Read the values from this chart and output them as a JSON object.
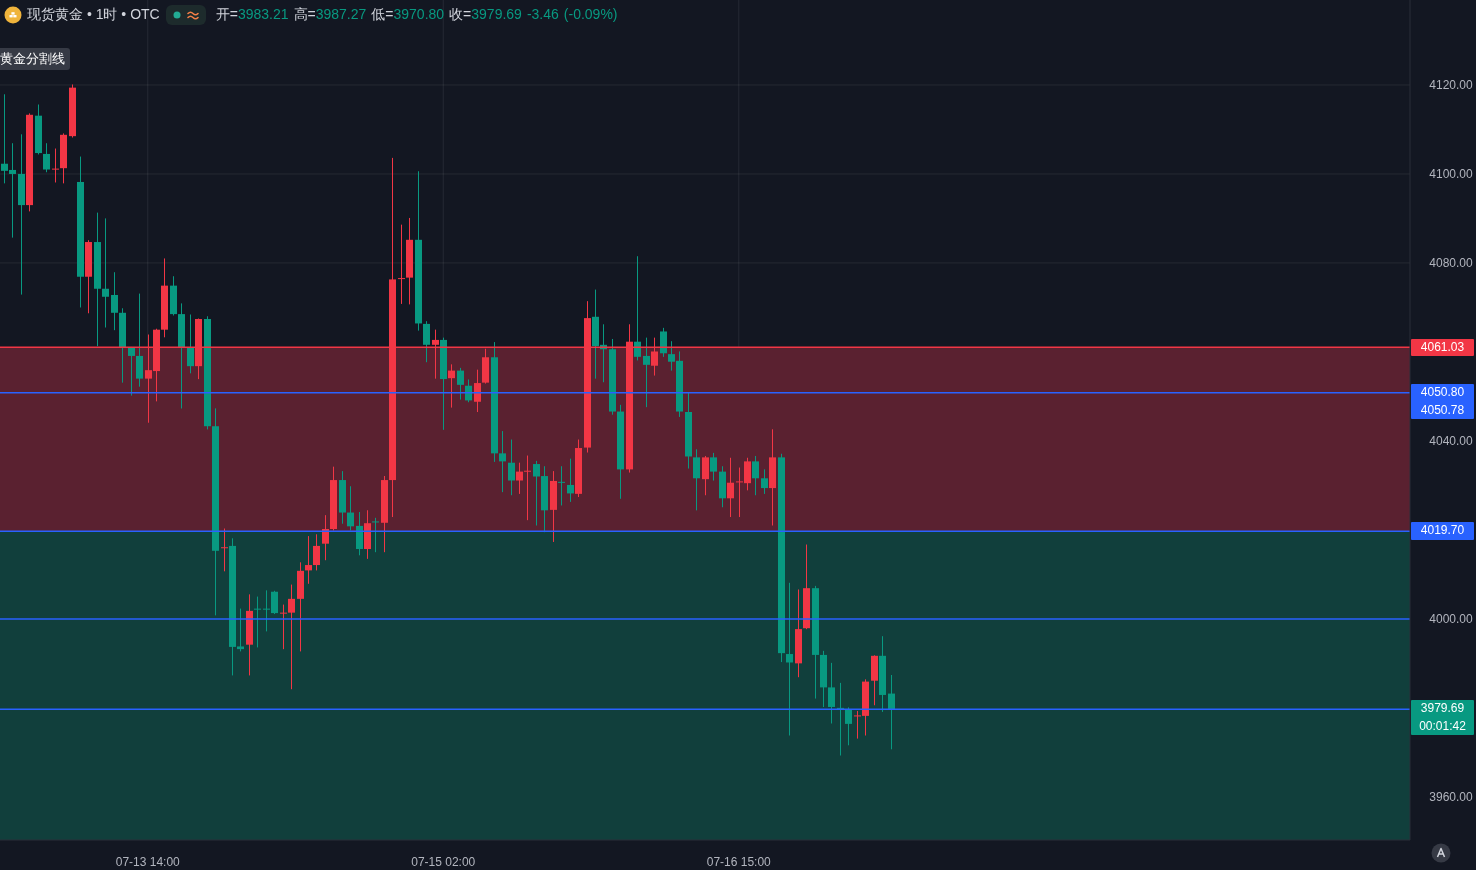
{
  "chart_data": {
    "type": "candlestick",
    "title": "现货黄金 • 1时 • OTC",
    "subtitle": "开=3983.21 高=3987.27 低=3970.80 收=3979.69 -3.46 (-0.09%)",
    "categories": [
      null,
      null,
      null,
      null,
      null,
      null,
      null,
      null,
      null,
      null,
      null,
      null,
      null,
      null,
      null,
      null,
      null,
      "07-13 14:00",
      null,
      null,
      null,
      null,
      null,
      null,
      null,
      null,
      null,
      null,
      null,
      null,
      null,
      null,
      null,
      null,
      null,
      null,
      null,
      null,
      null,
      null,
      null,
      null,
      null,
      null,
      null,
      null,
      null,
      null,
      null,
      null,
      null,
      null,
      "07-15 02:00",
      null,
      null,
      null,
      null,
      null,
      null,
      null,
      null,
      null,
      null,
      null,
      null,
      null,
      null,
      null,
      null,
      null,
      null,
      null,
      null,
      null,
      null,
      null,
      null,
      null,
      null,
      null,
      null,
      null,
      null,
      null,
      null,
      null,
      null,
      "07-16 15:00",
      null,
      null,
      null,
      null,
      null,
      null,
      null,
      null,
      null,
      null,
      null,
      null,
      null,
      null,
      null,
      null,
      null,
      null,
      null,
      null,
      null,
      null,
      null,
      null,
      null,
      null,
      null,
      null,
      null,
      null,
      null,
      null,
      null,
      null,
      null,
      null,
      null,
      null,
      null,
      null,
      null,
      null,
      null,
      null,
      null,
      null,
      null,
      null,
      null,
      null,
      null,
      null,
      null,
      null,
      null,
      null,
      null,
      null,
      null,
      null,
      null,
      null,
      null,
      null,
      null,
      null,
      null,
      null,
      null,
      null,
      null,
      null,
      null,
      null,
      null,
      null,
      null,
      null,
      null
    ],
    "ohlc": [
      [
        4102.3,
        4117.8,
        4098.0,
        4100.7
      ],
      [
        4100.9,
        4106.8,
        4085.8,
        4100.0
      ],
      [
        4100.0,
        4108.8,
        4073.0,
        4093.0
      ],
      [
        4093.0,
        4113.5,
        4091.7,
        4113.3
      ],
      [
        4113.1,
        4115.5,
        4104.5,
        4104.7
      ],
      [
        4104.5,
        4106.8,
        4100.5,
        4101.0
      ],
      [
        4101.0,
        4105.6,
        4098.2,
        4101.2
      ],
      [
        4101.3,
        4109.0,
        4098.0,
        4108.8
      ],
      [
        4108.5,
        4120.0,
        4108.3,
        4119.4
      ],
      [
        4098.2,
        4103.8,
        4070.1,
        4076.9
      ],
      [
        4076.9,
        4085.0,
        4068.8,
        4084.7
      ],
      [
        4084.7,
        4091.2,
        4061.4,
        4074.2
      ],
      [
        4074.2,
        4089.9,
        4065.6,
        4072.4
      ],
      [
        4072.8,
        4077.8,
        4065.0,
        4068.8
      ],
      [
        4068.8,
        4069.7,
        4053.2,
        4060.9
      ],
      [
        4060.9,
        4061.0,
        4050.3,
        4059.1
      ],
      [
        4059.1,
        4073.0,
        4052.3,
        4054.0
      ],
      [
        4054.0,
        4063.8,
        4044.2,
        4055.9
      ],
      [
        4055.7,
        4065.1,
        4049.0,
        4065.0
      ],
      [
        4065.0,
        4080.9,
        4063.4,
        4074.9
      ],
      [
        4074.9,
        4076.9,
        4068.3,
        4068.5
      ],
      [
        4068.5,
        4070.8,
        4047.4,
        4060.9
      ],
      [
        4060.9,
        4068.3,
        4055.3,
        4056.8
      ],
      [
        4056.8,
        4067.4,
        4054.0,
        4067.4
      ],
      [
        4067.4,
        4067.9,
        4042.7,
        4043.3
      ],
      [
        4043.3,
        4047.2,
        4000.9,
        4015.3
      ],
      [
        4016.0,
        4020.2,
        4010.8,
        4016.1
      ],
      [
        4016.4,
        4018.0,
        3987.4,
        3993.7
      ],
      [
        3993.8,
        4002.2,
        3992.8,
        3993.2
      ],
      [
        3994.2,
        4005.4,
        3987.4,
        4001.8
      ],
      [
        4002.3,
        4004.9,
        3993.7,
        4002.1
      ],
      [
        4002.3,
        4006.3,
        3997.3,
        4002.1
      ],
      [
        4006.1,
        4006.2,
        4001.2,
        4001.3
      ],
      [
        4001.3,
        4003.1,
        3993.3,
        4001.4
      ],
      [
        4001.4,
        4007.6,
        3984.3,
        4004.5
      ],
      [
        4004.5,
        4012.6,
        3992.8,
        4010.8
      ],
      [
        4010.9,
        4018.5,
        4008.0,
        4012.1
      ],
      [
        4012.1,
        4018.9,
        4011.0,
        4016.4
      ],
      [
        4016.9,
        4023.2,
        4013.3,
        4020.2
      ],
      [
        4020.2,
        4034.1,
        4020.0,
        4031.2
      ],
      [
        4031.2,
        4033.1,
        4021.5,
        4023.9
      ],
      [
        4023.9,
        4029.7,
        4020.0,
        4020.8
      ],
      [
        4020.9,
        4023.9,
        4014.4,
        4015.7
      ],
      [
        4015.7,
        4024.3,
        4013.6,
        4021.5
      ],
      [
        4021.9,
        4022.6,
        4015.1,
        4021.8
      ],
      [
        4021.6,
        4032.0,
        4015.1,
        4031.2
      ],
      [
        4031.2,
        4103.5,
        4023.0,
        4076.3
      ],
      [
        4076.5,
        4088.5,
        4070.9,
        4076.6
      ],
      [
        4076.7,
        4090.0,
        4070.8,
        4085.2
      ],
      [
        4085.2,
        4100.5,
        4064.9,
        4066.4
      ],
      [
        4066.3,
        4066.8,
        4057.8,
        4061.6
      ],
      [
        4061.6,
        4064.9,
        4054.1,
        4062.7
      ],
      [
        4062.7,
        4063.1,
        4042.6,
        4053.9
      ],
      [
        4054.1,
        4057.1,
        4047.6,
        4055.8
      ],
      [
        4055.8,
        4056.3,
        4049.4,
        4052.6
      ],
      [
        4052.4,
        4053.7,
        4048.8,
        4049.1
      ],
      [
        4048.8,
        4055.9,
        4046.6,
        4053.0
      ],
      [
        4053.1,
        4060.6,
        4053.0,
        4058.8
      ],
      [
        4058.8,
        4062.1,
        4035.4,
        4037.2
      ],
      [
        4037.2,
        4042.1,
        4028.6,
        4035.4
      ],
      [
        4035.1,
        4040.2,
        4027.9,
        4031.1
      ],
      [
        4031.1,
        4035.0,
        4028.2,
        4033.1
      ],
      [
        4033.2,
        4036.6,
        4022.3,
        4033.3
      ],
      [
        4034.8,
        4035.4,
        4021.1,
        4032.0
      ],
      [
        4032.1,
        4034.2,
        4019.6,
        4024.4
      ],
      [
        4024.5,
        4033.1,
        4017.4,
        4031.0
      ],
      [
        4030.8,
        4034.2,
        4025.6,
        4030.6
      ],
      [
        4030.1,
        4035.9,
        4026.4,
        4028.2
      ],
      [
        4028.1,
        4040.2,
        4027.5,
        4038.4
      ],
      [
        4038.5,
        4071.3,
        4037.5,
        4067.6
      ],
      [
        4067.9,
        4073.9,
        4054.1,
        4061.3
      ],
      [
        4061.6,
        4066.1,
        4053.3,
        4060.6
      ],
      [
        4060.6,
        4062.8,
        4046.0,
        4046.6
      ],
      [
        4046.6,
        4048.0,
        4027.1,
        4033.6
      ],
      [
        4033.6,
        4066.1,
        4033.0,
        4062.3
      ],
      [
        4062.3,
        4081.4,
        4058.2,
        4058.9
      ],
      [
        4059.1,
        4063.1,
        4047.7,
        4057.1
      ],
      [
        4056.9,
        4063.1,
        4054.8,
        4060.1
      ],
      [
        4064.6,
        4065.3,
        4059.0,
        4059.7
      ],
      [
        4059.5,
        4062.3,
        4055.9,
        4057.8
      ],
      [
        4058.0,
        4060.0,
        4045.5,
        4046.6
      ],
      [
        4046.5,
        4050.7,
        4033.9,
        4036.5
      ],
      [
        4036.3,
        4038.0,
        4024.5,
        4031.6
      ],
      [
        4031.4,
        4036.5,
        4027.9,
        4036.3
      ],
      [
        4036.3,
        4037.2,
        4031.2,
        4033.1
      ],
      [
        4033.1,
        4034.2,
        4025.2,
        4027.1
      ],
      [
        4027.1,
        4036.1,
        4023.0,
        4030.6
      ],
      [
        4030.7,
        4033.9,
        4023.0,
        4030.9
      ],
      [
        4030.5,
        4036.1,
        4029.0,
        4035.4
      ],
      [
        4035.4,
        4036.5,
        4027.9,
        4031.6
      ],
      [
        4031.6,
        4033.5,
        4028.2,
        4029.4
      ],
      [
        4029.4,
        4042.5,
        4021.1,
        4036.3
      ],
      [
        4036.3,
        4037.0,
        3990.4,
        3992.3
      ],
      [
        3992.1,
        4008.0,
        3973.9,
        3990.2
      ],
      [
        3990.0,
        4006.5,
        3987.0,
        3997.7
      ],
      [
        3997.9,
        4016.6,
        3997.8,
        4006.9
      ],
      [
        4006.9,
        4007.3,
        3982.2,
        3991.9
      ],
      [
        3991.9,
        3992.7,
        3980.3,
        3984.6
      ],
      [
        3984.6,
        3990.0,
        3976.6,
        3980.2
      ],
      [
        3980.0,
        3985.5,
        3969.4,
        3979.8
      ],
      [
        3979.6,
        3980.0,
        3971.7,
        3976.4
      ],
      [
        3978.2,
        3979.2,
        3973.2,
        3978.3
      ],
      [
        3978.2,
        3986.3,
        3973.9,
        3985.9
      ],
      [
        3986.1,
        3991.7,
        3980.7,
        3991.7
      ],
      [
        3991.7,
        3996.0,
        3979.2,
        3982.9
      ],
      [
        3983.21,
        3987.27,
        3970.8,
        3979.69
      ],
      null,
      null,
      null,
      null,
      null,
      null,
      null,
      null,
      null,
      null,
      null,
      null,
      null,
      null,
      null,
      null,
      null,
      null,
      null,
      null,
      null,
      null,
      null,
      null,
      null,
      null,
      null,
      null,
      null,
      null,
      null,
      null,
      null,
      null,
      null,
      null,
      null,
      null,
      null,
      null,
      null,
      null,
      null,
      null,
      null,
      null,
      null,
      null,
      null,
      null,
      null,
      null,
      null,
      null,
      null,
      null,
      null,
      null,
      null,
      null,
      null
    ],
    "colors": [
      "#089981",
      "#089981",
      "#089981",
      "#f23645",
      "#089981",
      "#089981",
      "#f23645",
      "#f23645",
      "#f23645",
      "#089981",
      "#f23645",
      "#089981",
      "#089981",
      "#089981",
      "#089981",
      "#089981",
      "#089981",
      "#f23645",
      "#f23645",
      "#f23645",
      "#089981",
      "#089981",
      "#089981",
      "#f23645",
      "#089981",
      "#089981",
      "#f23645",
      "#089981",
      "#089981",
      "#f23645",
      "#089981",
      "#089981",
      "#089981",
      "#f23645",
      "#f23645",
      "#f23645",
      "#f23645",
      "#f23645",
      "#f23645",
      "#f23645",
      "#089981",
      "#089981",
      "#089981",
      "#f23645",
      "#089981",
      "#f23645",
      "#f23645",
      "#f23645",
      "#f23645",
      "#089981",
      "#089981",
      "#f23645",
      "#089981",
      "#f23645",
      "#089981",
      "#089981",
      "#f23645",
      "#f23645",
      "#089981",
      "#089981",
      "#089981",
      "#f23645",
      "#f23645",
      "#089981",
      "#089981",
      "#f23645",
      "#089981",
      "#089981",
      "#f23645",
      "#f23645",
      "#089981",
      "#089981",
      "#089981",
      "#089981",
      "#f23645",
      "#089981",
      "#089981",
      "#f23645",
      "#089981",
      "#089981",
      "#089981",
      "#089981",
      "#089981",
      "#f23645",
      "#089981",
      "#089981",
      "#f23645",
      "#f23645",
      "#f23645",
      "#089981",
      "#089981",
      "#f23645",
      "#089981",
      "#089981",
      "#f23645",
      "#f23645",
      "#089981",
      "#089981",
      "#089981",
      "#089981",
      "#089981",
      "#f23645",
      "#f23645",
      "#f23645",
      "#089981",
      "#089981",
      null,
      null,
      null,
      null,
      null,
      null,
      null,
      null,
      null,
      null,
      null,
      null,
      null,
      null,
      null,
      null,
      null,
      null,
      null,
      null,
      null,
      null,
      null,
      null,
      null,
      null,
      null,
      null,
      null,
      null,
      null,
      null,
      null,
      null,
      null,
      null,
      null,
      null,
      null,
      null,
      null,
      null,
      null,
      null,
      null,
      null,
      null,
      null,
      null,
      null,
      null,
      null,
      null,
      null,
      null,
      null,
      null,
      null,
      null,
      null,
      null
    ],
    "ylim": [
      3950.3,
      4139.1
    ],
    "yticks": [
      {
        "value": 3960,
        "label": "3960.00"
      },
      {
        "value": 4000,
        "label": "4000.00"
      },
      {
        "value": 4040,
        "label": "4040.00"
      },
      {
        "value": 4080,
        "label": "4080.00"
      },
      {
        "value": 4100,
        "label": "4100.00"
      },
      {
        "value": 4120,
        "label": "4120.00"
      }
    ],
    "grid": true,
    "bands": [
      {
        "axis": "y",
        "from": 4019.7,
        "to": 4061.03,
        "color": "#5a2130"
      },
      {
        "axis": "y",
        "from": 3950.3,
        "to": 4019.7,
        "color": "#113f3c"
      }
    ],
    "ref_lines": [
      {
        "axis": "y",
        "value": 4061.03,
        "label": "4061.03",
        "color": "#f23645"
      },
      {
        "axis": "y",
        "value": 4050.8,
        "label": "4050.80",
        "color": "#2962ff"
      },
      {
        "axis": "y",
        "value": 4019.7,
        "label": "4019.70",
        "color": "#2962ff"
      },
      {
        "axis": "y",
        "value": 4000,
        "label": null,
        "color": "#2962ff"
      },
      {
        "axis": "y",
        "value": 3979.69,
        "label": "3979.69",
        "color": "#2962ff"
      }
    ],
    "annotations": [
      "黄金分割线",
      "4050.78",
      "00:01:42"
    ]
  }
}
